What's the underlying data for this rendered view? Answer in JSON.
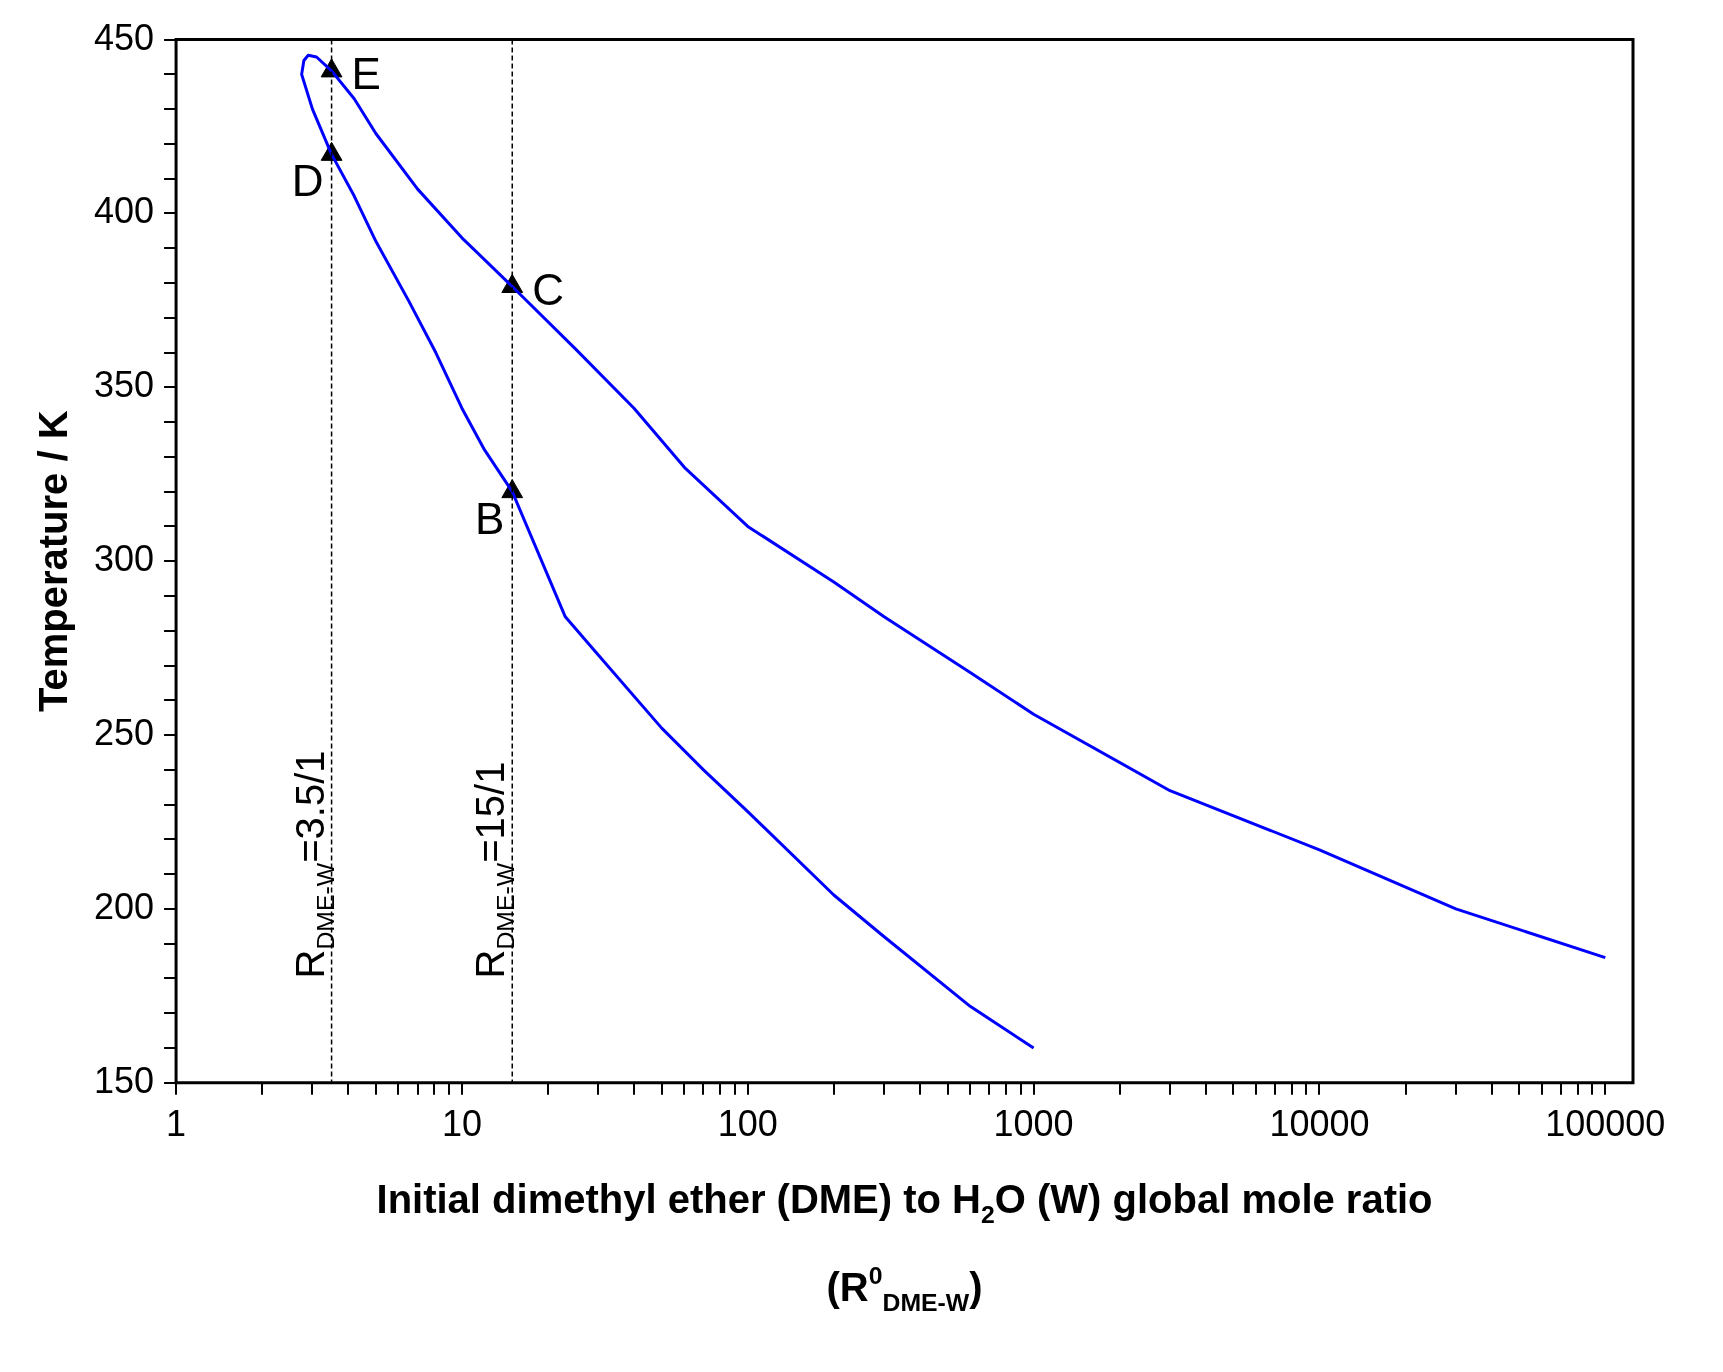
{
  "chart_data": {
    "type": "line",
    "xlabel": "Initial dimethyl ether (DME) to H$_{2}$O (W) global mole ratio (R$^{0}$$_{DME-W}$)",
    "ylabel": "Temperature / K",
    "log": "x",
    "grid": false,
    "legend": false,
    "xlim": [
      1,
      125000
    ],
    "ylim": [
      150,
      450
    ],
    "xticks": [
      1,
      {
        "value": 2,
        "label": null
      },
      {
        "value": 3,
        "label": null
      },
      {
        "value": 4,
        "label": null
      },
      {
        "value": 5,
        "label": null
      },
      {
        "value": 6,
        "label": null
      },
      {
        "value": 7,
        "label": null
      },
      {
        "value": 8,
        "label": null
      },
      {
        "value": 9,
        "label": null
      },
      10,
      {
        "value": 20,
        "label": null
      },
      {
        "value": 30,
        "label": null
      },
      {
        "value": 40,
        "label": null
      },
      {
        "value": 50,
        "label": null
      },
      {
        "value": 60,
        "label": null
      },
      {
        "value": 70,
        "label": null
      },
      {
        "value": 80,
        "label": null
      },
      {
        "value": 90,
        "label": null
      },
      100,
      {
        "value": 200,
        "label": null
      },
      {
        "value": 300,
        "label": null
      },
      {
        "value": 400,
        "label": null
      },
      {
        "value": 500,
        "label": null
      },
      {
        "value": 600,
        "label": null
      },
      {
        "value": 700,
        "label": null
      },
      {
        "value": 800,
        "label": null
      },
      {
        "value": 900,
        "label": null
      },
      1000,
      {
        "value": 2000,
        "label": null
      },
      {
        "value": 3000,
        "label": null
      },
      {
        "value": 4000,
        "label": null
      },
      {
        "value": 5000,
        "label": null
      },
      {
        "value": 6000,
        "label": null
      },
      {
        "value": 7000,
        "label": null
      },
      {
        "value": 8000,
        "label": null
      },
      {
        "value": 9000,
        "label": null
      },
      10000,
      {
        "value": 20000,
        "label": null
      },
      {
        "value": 30000,
        "label": null
      },
      {
        "value": 40000,
        "label": null
      },
      {
        "value": 50000,
        "label": null
      },
      {
        "value": 60000,
        "label": null
      },
      {
        "value": 70000,
        "label": null
      },
      {
        "value": 80000,
        "label": null
      },
      {
        "value": 90000,
        "label": null
      },
      100000
    ],
    "yticks": [
      150,
      {
        "value": 160,
        "label": null
      },
      {
        "value": 170,
        "label": null
      },
      {
        "value": 180,
        "label": null
      },
      {
        "value": 190,
        "label": null
      },
      200,
      {
        "value": 210,
        "label": null
      },
      {
        "value": 220,
        "label": null
      },
      {
        "value": 230,
        "label": null
      },
      {
        "value": 240,
        "label": null
      },
      250,
      {
        "value": 260,
        "label": null
      },
      {
        "value": 270,
        "label": null
      },
      {
        "value": 280,
        "label": null
      },
      {
        "value": 290,
        "label": null
      },
      300,
      {
        "value": 310,
        "label": null
      },
      {
        "value": 320,
        "label": null
      },
      {
        "value": 330,
        "label": null
      },
      {
        "value": 340,
        "label": null
      },
      350,
      {
        "value": 360,
        "label": null
      },
      {
        "value": 370,
        "label": null
      },
      {
        "value": 380,
        "label": null
      },
      {
        "value": 390,
        "label": null
      },
      400,
      {
        "value": 410,
        "label": null
      },
      {
        "value": 420,
        "label": null
      },
      {
        "value": 430,
        "label": null
      },
      {
        "value": 440,
        "label": null
      },
      450
    ],
    "series": [
      {
        "color": "#0000ff",
        "marker": "none",
        "line_style": "solid",
        "x": [
          1000,
          600,
          300,
          200,
          100,
          70,
          50,
          30,
          23,
          15,
          12,
          10,
          8.1,
          6.5,
          5,
          4.2,
          3.5,
          3.0,
          2.75,
          2.8,
          2.9,
          3.1,
          3.5,
          4.2,
          5,
          7,
          10,
          15,
          25,
          40,
          60,
          100,
          200,
          300,
          600,
          1000,
          3000,
          10000,
          30000,
          100000
        ],
        "values": [
          160,
          172,
          192,
          204,
          228,
          240,
          252,
          273,
          284,
          320,
          332,
          344,
          360,
          375,
          392,
          405,
          417,
          430,
          440,
          444,
          445.5,
          445,
          441,
          433,
          423,
          407,
          393,
          379,
          361,
          344,
          327,
          310,
          294,
          284,
          268,
          256,
          234,
          217,
          200,
          186
        ]
      },
      {
        "type": "scatter",
        "color": "#000000",
        "marker": "triangle",
        "x": [
          15,
          15,
          3.5,
          3.5
        ],
        "values": [
          320,
          379,
          417,
          441
        ],
        "value_labels": [
          "B",
          "C",
          "D",
          "E"
        ]
      }
    ],
    "ref_lines": [
      {
        "axis": "x",
        "value": 3.5,
        "label": "R$_{DME-W}$=3.5/1",
        "color": "#000000",
        "line_style": "dashed"
      },
      {
        "axis": "x",
        "value": 15,
        "label": "R$_{DME-W}$=15/1",
        "color": "#000000",
        "line_style": "dashed"
      }
    ]
  }
}
